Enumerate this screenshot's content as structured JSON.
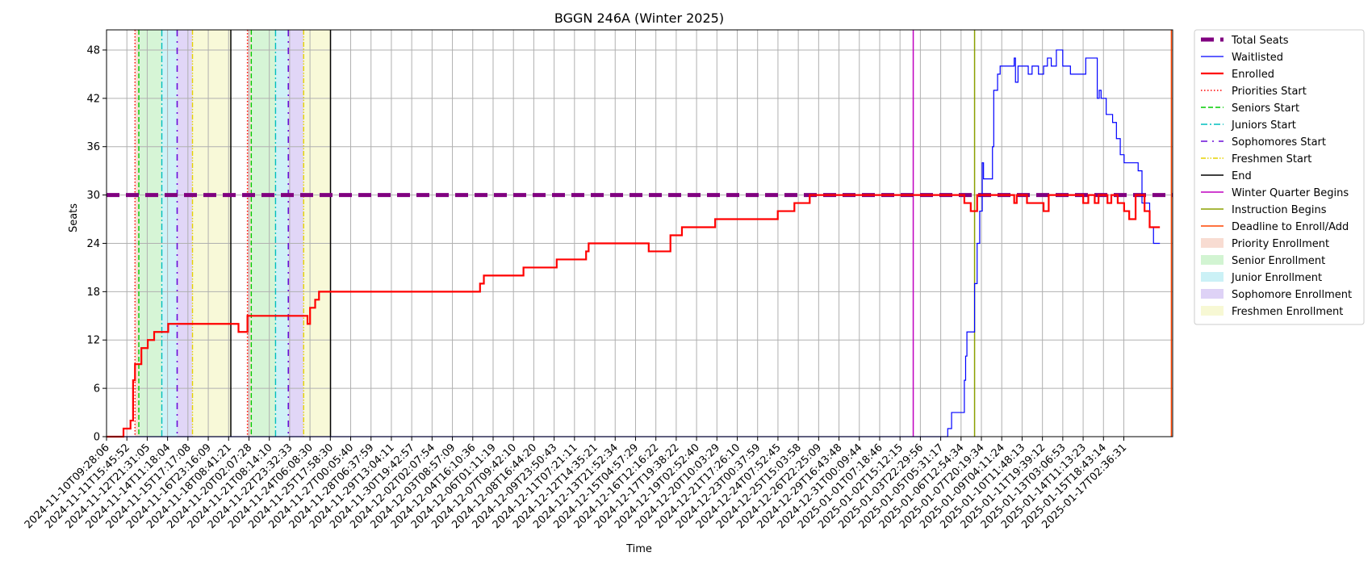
{
  "chart_data": {
    "type": "line",
    "title": "BGGN 246A (Winter 2025)",
    "xlabel": "Time",
    "ylabel": "Seats",
    "ylim": [
      0,
      50.5
    ],
    "yticks": [
      0,
      6,
      12,
      18,
      24,
      30,
      36,
      42,
      48
    ],
    "xlim": [
      "2024-11-10T09:28:06",
      "2025-01-18T22:00:00"
    ],
    "grid": true,
    "legend_position": "outside-right-top",
    "xtick_labels": [
      "2024-11-10T09:28:06",
      "2024-11-11T15:45:52",
      "2024-11-12T21:31:05",
      "2024-11-14T11:18:04",
      "2024-11-15T17:17:08",
      "2024-11-16T23:16:09",
      "2024-11-18T08:41:21",
      "2024-11-20T02:07:28",
      "2024-11-21T08:14:10",
      "2024-11-22T23:32:33",
      "2024-11-24T06:08:30",
      "2024-11-25T17:58:30",
      "2024-11-27T00:05:40",
      "2024-11-28T06:37:59",
      "2024-11-29T13:04:11",
      "2024-11-30T19:42:57",
      "2024-12-02T02:07:54",
      "2024-12-03T08:57:09",
      "2024-12-04T16:10:36",
      "2024-12-06T01:11:19",
      "2024-12-07T09:42:10",
      "2024-12-08T16:44:20",
      "2024-12-09T23:50:43",
      "2024-12-11T07:21:11",
      "2024-12-12T14:35:21",
      "2024-12-13T21:52:34",
      "2024-12-15T04:57:29",
      "2024-12-16T12:16:22",
      "2024-12-17T19:38:22",
      "2024-12-19T02:52:40",
      "2024-12-20T10:03:29",
      "2024-12-21T17:26:10",
      "2024-12-23T00:37:59",
      "2024-12-24T07:52:45",
      "2024-12-25T15:03:58",
      "2024-12-26T22:25:09",
      "2024-12-29T16:43:48",
      "2024-12-31T00:09:44",
      "2025-01-01T07:18:46",
      "2025-01-02T15:12:15",
      "2025-01-03T22:29:56",
      "2025-01-05T05:31:17",
      "2025-01-06T12:54:34",
      "2025-01-07T20:19:34",
      "2025-01-09T04:11:24",
      "2025-01-10T11:48:13",
      "2025-01-11T19:39:12",
      "2025-01-13T03:06:53",
      "2025-01-14T11:13:23",
      "2025-01-15T18:43:14",
      "2025-01-17T02:36:31"
    ],
    "series": [
      {
        "name": "Total Seats",
        "color": "#800080",
        "style": "dashed-thick",
        "points": [
          [
            "2024-11-10T09:28:06",
            30
          ],
          [
            "2025-01-18T22:00:00",
            30
          ]
        ]
      },
      {
        "name": "Waitlisted",
        "color": "#0000ff",
        "style": "solid-thin",
        "points": [
          [
            "2024-11-10T09:28:06",
            0
          ],
          [
            "2025-01-04T02:00:00",
            0
          ],
          [
            "2025-01-04T06:00:00",
            1
          ],
          [
            "2025-01-04T12:00:00",
            3
          ],
          [
            "2025-01-05T06:00:00",
            3
          ],
          [
            "2025-01-05T08:00:00",
            7
          ],
          [
            "2025-01-05T10:00:00",
            10
          ],
          [
            "2025-01-05T12:00:00",
            13
          ],
          [
            "2025-01-05T22:00:00",
            13
          ],
          [
            "2025-01-06T00:00:00",
            19
          ],
          [
            "2025-01-06T04:00:00",
            24
          ],
          [
            "2025-01-06T08:00:00",
            28
          ],
          [
            "2025-01-06T12:00:00",
            34
          ],
          [
            "2025-01-06T14:00:00",
            32
          ],
          [
            "2025-01-07T00:00:00",
            32
          ],
          [
            "2025-01-07T04:00:00",
            36
          ],
          [
            "2025-01-07T06:00:00",
            43
          ],
          [
            "2025-01-07T12:00:00",
            45
          ],
          [
            "2025-01-07T16:00:00",
            46
          ],
          [
            "2025-01-08T12:00:00",
            46
          ],
          [
            "2025-01-08T14:00:00",
            47
          ],
          [
            "2025-01-08T16:00:00",
            44
          ],
          [
            "2025-01-08T20:00:00",
            46
          ],
          [
            "2025-01-09T12:00:00",
            45
          ],
          [
            "2025-01-09T18:00:00",
            46
          ],
          [
            "2025-01-10T04:00:00",
            45
          ],
          [
            "2025-01-10T12:00:00",
            46
          ],
          [
            "2025-01-10T18:00:00",
            47
          ],
          [
            "2025-01-11T00:00:00",
            46
          ],
          [
            "2025-01-11T08:00:00",
            48
          ],
          [
            "2025-01-11T18:00:00",
            46
          ],
          [
            "2025-01-12T06:00:00",
            45
          ],
          [
            "2025-01-12T18:00:00",
            45
          ],
          [
            "2025-01-13T06:00:00",
            47
          ],
          [
            "2025-01-13T18:00:00",
            47
          ],
          [
            "2025-01-14T00:00:00",
            42
          ],
          [
            "2025-01-14T03:00:00",
            43
          ],
          [
            "2025-01-14T06:00:00",
            42
          ],
          [
            "2025-01-14T14:00:00",
            40
          ],
          [
            "2025-01-15T00:00:00",
            39
          ],
          [
            "2025-01-15T06:00:00",
            37
          ],
          [
            "2025-01-15T12:00:00",
            35
          ],
          [
            "2025-01-15T18:00:00",
            34
          ],
          [
            "2025-01-16T10:00:00",
            34
          ],
          [
            "2025-01-16T16:00:00",
            33
          ],
          [
            "2025-01-16T22:00:00",
            29
          ],
          [
            "2025-01-17T10:00:00",
            26
          ],
          [
            "2025-01-17T16:00:00",
            24
          ],
          [
            "2025-01-18T02:00:00",
            24
          ]
        ]
      },
      {
        "name": "Enrolled",
        "color": "#ff0000",
        "style": "solid-thick",
        "points": [
          [
            "2024-11-10T09:28:06",
            0
          ],
          [
            "2024-11-11T10:00:00",
            0
          ],
          [
            "2024-11-11T12:00:00",
            1
          ],
          [
            "2024-11-11T23:00:00",
            2
          ],
          [
            "2024-11-12T03:00:00",
            7
          ],
          [
            "2024-11-12T06:00:00",
            9
          ],
          [
            "2024-11-12T16:00:00",
            11
          ],
          [
            "2024-11-13T02:00:00",
            12
          ],
          [
            "2024-11-13T12:00:00",
            13
          ],
          [
            "2024-11-14T06:00:00",
            13
          ],
          [
            "2024-11-14T10:00:00",
            14
          ],
          [
            "2024-11-18T18:00:00",
            14
          ],
          [
            "2024-11-19T00:00:00",
            13
          ],
          [
            "2024-11-19T14:00:00",
            15
          ],
          [
            "2024-11-23T10:00:00",
            15
          ],
          [
            "2024-11-23T12:00:00",
            14
          ],
          [
            "2024-11-23T16:00:00",
            16
          ],
          [
            "2024-11-24T00:00:00",
            17
          ],
          [
            "2024-11-24T06:00:00",
            18
          ],
          [
            "2024-12-04T14:00:00",
            18
          ],
          [
            "2024-12-04T18:00:00",
            19
          ],
          [
            "2024-12-05T00:00:00",
            20
          ],
          [
            "2024-12-07T10:00:00",
            20
          ],
          [
            "2024-12-07T14:00:00",
            21
          ],
          [
            "2024-12-09T14:00:00",
            21
          ],
          [
            "2024-12-09T18:00:00",
            22
          ],
          [
            "2024-12-11T14:00:00",
            22
          ],
          [
            "2024-12-11T16:00:00",
            23
          ],
          [
            "2024-12-11T20:00:00",
            24
          ],
          [
            "2024-12-15T14:00:00",
            24
          ],
          [
            "2024-12-15T18:00:00",
            23
          ],
          [
            "2024-12-17T02:00:00",
            23
          ],
          [
            "2024-12-17T04:00:00",
            25
          ],
          [
            "2024-12-17T22:00:00",
            26
          ],
          [
            "2024-12-20T00:00:00",
            26
          ],
          [
            "2024-12-20T02:00:00",
            27
          ],
          [
            "2024-12-24T02:00:00",
            27
          ],
          [
            "2024-12-24T04:00:00",
            28
          ],
          [
            "2024-12-25T04:00:00",
            28
          ],
          [
            "2024-12-25T06:00:00",
            29
          ],
          [
            "2024-12-26T02:00:00",
            29
          ],
          [
            "2024-12-26T06:00:00",
            30
          ],
          [
            "2025-01-05T04:00:00",
            30
          ],
          [
            "2025-01-05T08:00:00",
            29
          ],
          [
            "2025-01-05T18:00:00",
            28
          ],
          [
            "2025-01-06T04:00:00",
            30
          ],
          [
            "2025-01-08T10:00:00",
            30
          ],
          [
            "2025-01-08T14:00:00",
            29
          ],
          [
            "2025-01-08T18:00:00",
            30
          ],
          [
            "2025-01-09T06:00:00",
            30
          ],
          [
            "2025-01-09T10:00:00",
            29
          ],
          [
            "2025-01-10T12:00:00",
            28
          ],
          [
            "2025-01-10T20:00:00",
            30
          ],
          [
            "2025-01-12T22:00:00",
            30
          ],
          [
            "2025-01-13T02:00:00",
            29
          ],
          [
            "2025-01-13T10:00:00",
            30
          ],
          [
            "2025-01-13T20:00:00",
            29
          ],
          [
            "2025-01-14T02:00:00",
            30
          ],
          [
            "2025-01-14T16:00:00",
            29
          ],
          [
            "2025-01-14T22:00:00",
            30
          ],
          [
            "2025-01-15T08:00:00",
            29
          ],
          [
            "2025-01-15T18:00:00",
            28
          ],
          [
            "2025-01-16T02:00:00",
            27
          ],
          [
            "2025-01-16T12:00:00",
            30
          ],
          [
            "2025-01-17T02:00:00",
            28
          ],
          [
            "2025-01-17T10:00:00",
            26
          ],
          [
            "2025-01-18T02:00:00",
            26
          ]
        ]
      }
    ],
    "vlines": [
      {
        "name": "Priorities Start",
        "color": "#ff0000",
        "style": "dotted",
        "x": [
          "2024-11-12T06:00:00",
          "2024-11-19T14:00:00"
        ]
      },
      {
        "name": "Seniors Start",
        "color": "#00cc00",
        "style": "dashed",
        "x": [
          "2024-11-12T12:00:00",
          "2024-11-19T20:00:00"
        ]
      },
      {
        "name": "Juniors Start",
        "color": "#00bfbf",
        "style": "dashdot",
        "x": [
          "2024-11-14T00:00:00",
          "2024-11-21T10:00:00"
        ]
      },
      {
        "name": "Sophomores Start",
        "color": "#6a0dd8",
        "style": "dashdotsparse",
        "x": [
          "2024-11-15T00:00:00",
          "2024-11-22T06:00:00"
        ]
      },
      {
        "name": "Freshmen Start",
        "color": "#e6d200",
        "style": "dashdotdot",
        "x": [
          "2024-11-16T00:00:00",
          "2024-11-23T06:00:00"
        ]
      },
      {
        "name": "End",
        "color": "#000000",
        "style": "solid",
        "x": [
          "2024-11-18T12:00:00",
          "2024-11-25T00:00:00"
        ]
      },
      {
        "name": "Winter Quarter Begins",
        "color": "#c000c0",
        "style": "solid",
        "x": [
          "2025-01-02T00:00:00"
        ]
      },
      {
        "name": "Instruction Begins",
        "color": "#8ba000",
        "style": "solid",
        "x": [
          "2025-01-06T00:00:00"
        ]
      },
      {
        "name": "Deadline to Enroll/Add",
        "color": "#ff4500",
        "style": "solid",
        "x": [
          "2025-01-18T20:00:00"
        ]
      }
    ],
    "spans": [
      {
        "name": "Priority Enrollment",
        "color": "#f4c4b4",
        "ranges": [
          [
            "2024-11-12T06:00:00",
            "2024-11-12T12:00:00"
          ],
          [
            "2024-11-19T14:00:00",
            "2024-11-19T20:00:00"
          ]
        ]
      },
      {
        "name": "Senior Enrollment",
        "color": "#b4ecb4",
        "ranges": [
          [
            "2024-11-12T12:00:00",
            "2024-11-14T00:00:00"
          ],
          [
            "2024-11-19T20:00:00",
            "2024-11-21T10:00:00"
          ]
        ]
      },
      {
        "name": "Junior Enrollment",
        "color": "#a8e8f0",
        "ranges": [
          [
            "2024-11-14T00:00:00",
            "2024-11-15T00:00:00"
          ],
          [
            "2024-11-21T10:00:00",
            "2024-11-22T06:00:00"
          ]
        ]
      },
      {
        "name": "Sophomore Enrollment",
        "color": "#c8b4f0",
        "ranges": [
          [
            "2024-11-15T00:00:00",
            "2024-11-16T00:00:00"
          ],
          [
            "2024-11-22T06:00:00",
            "2024-11-23T06:00:00"
          ]
        ]
      },
      {
        "name": "Freshmen Enrollment",
        "color": "#f2f4b8",
        "ranges": [
          [
            "2024-11-16T00:00:00",
            "2024-11-18T12:00:00"
          ],
          [
            "2024-11-23T06:00:00",
            "2024-11-25T00:00:00"
          ]
        ]
      }
    ],
    "legend": [
      {
        "label": "Total Seats",
        "kind": "line",
        "color": "#800080",
        "style": "dashed-thick"
      },
      {
        "label": "Waitlisted",
        "kind": "line",
        "color": "#0000ff",
        "style": "solid-thin"
      },
      {
        "label": "Enrolled",
        "kind": "line",
        "color": "#ff0000",
        "style": "solid-thick"
      },
      {
        "label": "Priorities Start",
        "kind": "line",
        "color": "#ff0000",
        "style": "dotted"
      },
      {
        "label": "Seniors Start",
        "kind": "line",
        "color": "#00cc00",
        "style": "dashed"
      },
      {
        "label": "Juniors Start",
        "kind": "line",
        "color": "#00bfbf",
        "style": "dashdot"
      },
      {
        "label": "Sophomores Start",
        "kind": "line",
        "color": "#6a0dd8",
        "style": "dashdotsparse"
      },
      {
        "label": "Freshmen Start",
        "kind": "line",
        "color": "#e6d200",
        "style": "dashdotdot"
      },
      {
        "label": "End",
        "kind": "line",
        "color": "#000000",
        "style": "solid"
      },
      {
        "label": "Winter Quarter Begins",
        "kind": "line",
        "color": "#c000c0",
        "style": "solid"
      },
      {
        "label": "Instruction Begins",
        "kind": "line",
        "color": "#8ba000",
        "style": "solid"
      },
      {
        "label": "Deadline to Enroll/Add",
        "kind": "line",
        "color": "#ff4500",
        "style": "solid"
      },
      {
        "label": "Priority Enrollment",
        "kind": "patch",
        "color": "#f4c4b4"
      },
      {
        "label": "Senior Enrollment",
        "kind": "patch",
        "color": "#b4ecb4"
      },
      {
        "label": "Junior Enrollment",
        "kind": "patch",
        "color": "#a8e8f0"
      },
      {
        "label": "Sophomore Enrollment",
        "kind": "patch",
        "color": "#c8b4f0"
      },
      {
        "label": "Freshmen Enrollment",
        "kind": "patch",
        "color": "#f2f4b8"
      }
    ]
  }
}
